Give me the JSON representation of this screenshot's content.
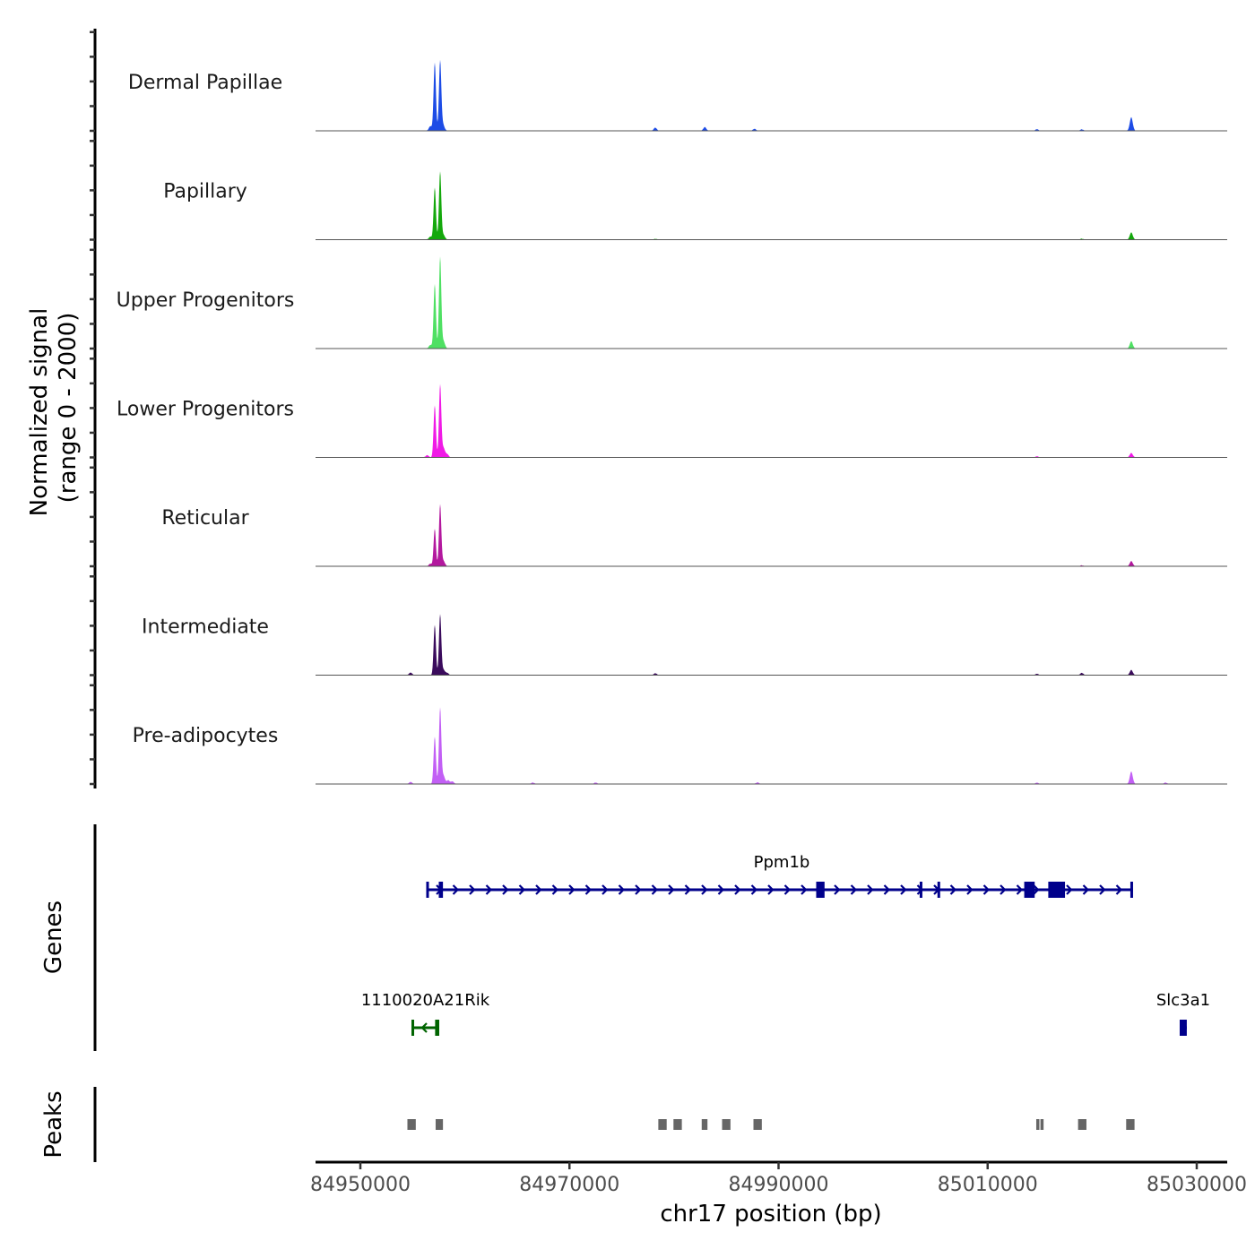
{
  "chart_data": {
    "type": "area",
    "title": "",
    "ylabel_line1": "Normalized signal",
    "ylabel_line2": "(range 0 - 2000)",
    "xlabel": "chr17 position (bp)",
    "xlim": [
      84945700,
      85032900
    ],
    "ylim": [
      0,
      2000
    ],
    "x_ticks": [
      84950000,
      84970000,
      84990000,
      85010000,
      85030000
    ],
    "x_tick_labels": [
      "84950000",
      "84970000",
      "84990000",
      "85010000",
      "85030000"
    ],
    "tracks": [
      {
        "name": "Dermal Papillae",
        "color": "#1d4ce6",
        "peaks": [
          [
            84957116,
            1310
          ],
          [
            84957631,
            1345
          ],
          [
            84957900,
            120
          ],
          [
            84956700,
            90
          ],
          [
            84978200,
            60
          ],
          [
            84982950,
            70
          ],
          [
            84987700,
            35
          ],
          [
            85014700,
            30
          ],
          [
            85019000,
            25
          ],
          [
            85023737,
            260
          ]
        ]
      },
      {
        "name": "Papillary",
        "color": "#14a80c",
        "peaks": [
          [
            84957116,
            1000
          ],
          [
            84957631,
            1310
          ],
          [
            84957950,
            90
          ],
          [
            84956700,
            60
          ],
          [
            84978200,
            15
          ],
          [
            85019000,
            15
          ],
          [
            85023737,
            140
          ]
        ]
      },
      {
        "name": "Upper Progenitors",
        "color": "#4fe063",
        "peaks": [
          [
            84957116,
            1240
          ],
          [
            84957631,
            1760
          ],
          [
            84957950,
            140
          ],
          [
            84956700,
            70
          ],
          [
            85023737,
            140
          ]
        ]
      },
      {
        "name": "Lower Progenitors",
        "color": "#f01ae6",
        "peaks": [
          [
            84957116,
            1000
          ],
          [
            84957631,
            1400
          ],
          [
            84957950,
            180
          ],
          [
            84958300,
            60
          ],
          [
            84956400,
            40
          ],
          [
            85014700,
            20
          ],
          [
            85023737,
            85
          ]
        ]
      },
      {
        "name": "Reticular",
        "color": "#b3189e",
        "peaks": [
          [
            84957116,
            720
          ],
          [
            84957631,
            1190
          ],
          [
            84957950,
            100
          ],
          [
            84956700,
            50
          ],
          [
            85019000,
            15
          ],
          [
            85023737,
            100
          ]
        ]
      },
      {
        "name": "Intermediate",
        "color": "#3a0b5c",
        "peaks": [
          [
            84957116,
            965
          ],
          [
            84957631,
            1170
          ],
          [
            84957950,
            100
          ],
          [
            84958300,
            40
          ],
          [
            84954800,
            50
          ],
          [
            84978200,
            35
          ],
          [
            85014700,
            25
          ],
          [
            85019000,
            40
          ],
          [
            85023737,
            100
          ]
        ]
      },
      {
        "name": "Pre-adipocytes",
        "color": "#c25ff5",
        "peaks": [
          [
            84957116,
            910
          ],
          [
            84957631,
            1465
          ],
          [
            84957950,
            160
          ],
          [
            84958400,
            70
          ],
          [
            84958800,
            50
          ],
          [
            84954800,
            40
          ],
          [
            84966500,
            25
          ],
          [
            84972500,
            25
          ],
          [
            84988000,
            30
          ],
          [
            85014700,
            25
          ],
          [
            85023737,
            240
          ],
          [
            85027000,
            25
          ]
        ]
      }
    ],
    "genes_label": "Genes",
    "genes": [
      {
        "name": "Ppm1b",
        "start": 84956345,
        "end": 85023910,
        "strand": "+",
        "color": "#00008b",
        "row": 0,
        "exons": [
          [
            84956300,
            84956500
          ],
          [
            84957500,
            84957900
          ],
          [
            84993600,
            84994400
          ],
          [
            85003500,
            85003600
          ],
          [
            85005200,
            85005300
          ],
          [
            85013500,
            85014500
          ],
          [
            85015800,
            85017400
          ],
          [
            85023650,
            85023910
          ]
        ]
      },
      {
        "name": "1110020A21Rik",
        "start": 84954887,
        "end": 84957545,
        "strand": "-",
        "color": "#006400",
        "row": 1,
        "exons": [
          [
            84954887,
            84955100
          ],
          [
            84957150,
            84957545
          ]
        ]
      },
      {
        "name": "Slc3a1",
        "start": 85028370,
        "end": 85029050,
        "strand": "+",
        "color": "#00008b",
        "row": 1,
        "exons": [
          [
            85028370,
            85029050
          ]
        ]
      }
    ],
    "peaks_label": "Peaks",
    "peak_color": "#666666",
    "peak_regions": [
      [
        84954500,
        84955300
      ],
      [
        84957200,
        84957900
      ],
      [
        84978500,
        84979300
      ],
      [
        84979950,
        84980750
      ],
      [
        84982650,
        84983200
      ],
      [
        84984600,
        84985400
      ],
      [
        84987600,
        84988400
      ],
      [
        85014650,
        85014950
      ],
      [
        85015050,
        85015350
      ],
      [
        85018650,
        85019450
      ],
      [
        85023250,
        85024050
      ]
    ]
  }
}
